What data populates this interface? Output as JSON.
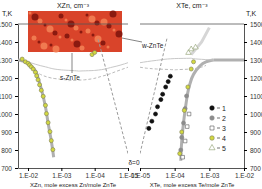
{
  "chart_data": [
    {
      "type": "scatter",
      "title": "XZn, cm⁻³",
      "x_label": "XZn, mole excess Zn/mole ZnTe",
      "y_label": "T,K",
      "log": "x",
      "xlim": [
        0.02,
        1e-05
      ],
      "ylim": [
        700,
        1500
      ],
      "xticks": [
        {
          "value": 0.01,
          "label": "1.E-02"
        },
        {
          "value": 0.001,
          "label": "1.E-03"
        },
        {
          "value": 0.0001,
          "label": "1.E-04"
        },
        {
          "value": 1e-05,
          "label": "1.E-05"
        }
      ],
      "yticks": [
        700,
        800,
        900,
        1000,
        1100,
        1200,
        1300,
        1400,
        1500
      ],
      "annotations": [
        "s-ZnTe"
      ],
      "series": [
        {
          "type": "line",
          "line_style": "thick",
          "color": "#b0b0b0",
          "x": [
            0.02,
            0.012,
            0.008,
            0.006,
            0.005,
            0.004,
            0.003,
            0.0025,
            0.002,
            0.0017
          ],
          "values": [
            1300,
            1290,
            1265,
            1240,
            1200,
            1140,
            1040,
            950,
            850,
            760
          ]
        },
        {
          "type": "line",
          "line_style": "solid",
          "color": "#c8c8c8",
          "x": [
            0.01,
            0.003,
            0.001,
            0.0003,
            0.0001,
            3e-05,
            1e-05
          ],
          "values": [
            1290,
            1262,
            1245,
            1238,
            1242,
            1260,
            1285
          ]
        },
        {
          "type": "line",
          "line_style": "dashed",
          "color": "#bbbbbb",
          "x": [
            0.006,
            0.002,
            0.0006,
            0.0002,
            6e-05,
            2e-05,
            1e-05
          ],
          "values": [
            1240,
            1200,
            1185,
            1190,
            1210,
            1240,
            1260
          ]
        },
        {
          "type": "line",
          "line_style": "dashed",
          "color": "#9a9a9a",
          "x": [
            1e-05,
            8e-05
          ],
          "values": [
            780,
            1420
          ]
        },
        {
          "type": "scatter",
          "marker": "circle",
          "color": "#d2d840",
          "x": [
            0.015,
            0.012,
            0.01,
            0.009,
            0.008,
            0.007,
            0.006,
            0.0055,
            0.005,
            0.0045,
            0.004,
            0.0035,
            0.003,
            0.0028,
            0.0025,
            0.0022,
            0.002,
            0.0018,
            0.00012,
            0.0001
          ],
          "values": [
            1305,
            1290,
            1282,
            1272,
            1262,
            1250,
            1232,
            1212,
            1190,
            1162,
            1132,
            1098,
            1048,
            1002,
            952,
            902,
            852,
            802,
            1330,
            1342
          ]
        }
      ]
    },
    {
      "type": "scatter",
      "title": "XTe, cm⁻³",
      "x_label": "XTe, mole excess Te/mole ZnTe",
      "y_label": "T,K",
      "log": "x",
      "legend": "right",
      "xlim": [
        1e-05,
        0.01
      ],
      "ylim": [
        700,
        1500
      ],
      "xticks": [
        {
          "value": 1e-05,
          "label": "1.E-05"
        },
        {
          "value": 0.0001,
          "label": "1.E-04"
        },
        {
          "value": 0.001,
          "label": "1.E-03"
        },
        {
          "value": 0.01,
          "label": "1.E-02"
        }
      ],
      "yticks": [
        700,
        800,
        900,
        1000,
        1100,
        1200,
        1300,
        1400,
        1500
      ],
      "annotations": [
        "w-ZnTe",
        "δ=0"
      ],
      "series": [
        {
          "type": "line",
          "line_style": "thick",
          "color": "#b0b0b0",
          "x": [
            0.00015,
            0.00016,
            0.00018,
            0.00021,
            0.00026,
            0.00035,
            0.0005,
            0.0008,
            0.0013
          ],
          "values": [
            740,
            850,
            950,
            1050,
            1150,
            1220,
            1260,
            1290,
            1300
          ]
        },
        {
          "type": "line",
          "line_style": "thick",
          "color": "#b0b0b0",
          "x": [
            0.0013,
            0.01
          ],
          "values": [
            1300,
            1300
          ]
        },
        {
          "type": "line",
          "line_style": "solid",
          "color": "#c8c8c8",
          "x": [
            1e-05,
            3e-05,
            0.0001,
            0.0003,
            0.0013
          ],
          "values": [
            1285,
            1298,
            1308,
            1310,
            1300
          ]
        },
        {
          "type": "line",
          "line_style": "dashed",
          "color": "#bbbbbb",
          "x": [
            1e-05,
            3e-05,
            0.0001,
            0.0003,
            0.0008
          ],
          "values": [
            1260,
            1250,
            1245,
            1250,
            1270
          ]
        },
        {
          "type": "line",
          "line_style": "dashed",
          "color": "#9a9a9a",
          "x": [
            1e-05,
            6e-05
          ],
          "values": [
            780,
            1420
          ]
        },
        {
          "type": "line",
          "line_style": "thick",
          "color": "#d6d6d6",
          "x": [
            0.0003,
            0.0006,
            0.001
          ],
          "values": [
            1330,
            1400,
            1480
          ]
        },
        {
          "name": "1",
          "type": "scatter",
          "marker": "circle",
          "color": "#111111",
          "x": [
            1.8e-05,
            2.2e-05,
            2.8e-05,
            3.2e-05,
            4e-05,
            4.5e-05,
            5.5e-05,
            6.5e-05,
            7.5e-05
          ],
          "values": [
            920,
            960,
            1000,
            1040,
            1080,
            1110,
            1150,
            1180,
            1210
          ]
        },
        {
          "name": "2",
          "type": "scatter",
          "marker": "circle",
          "color": "#8c8c8c",
          "x": [
            0.00015,
            0.00016,
            0.00018,
            0.0002,
            0.00022
          ],
          "values": [
            800,
            870,
            950,
            1030,
            1100
          ]
        },
        {
          "name": "3",
          "type": "scatter",
          "marker": "square-open",
          "color": "#555555",
          "x": [
            0.00017,
            0.0002,
            0.00023,
            0.00026
          ],
          "values": [
            760,
            850,
            930,
            1000
          ]
        },
        {
          "name": "4",
          "type": "scatter",
          "marker": "circle",
          "color": "#d2d840",
          "x": [
            0.00014,
            0.00016,
            0.00019,
            0.00024,
            0.0003,
            0.00035
          ],
          "values": [
            780,
            900,
            1020,
            1150,
            1250,
            1290
          ]
        },
        {
          "name": "5",
          "type": "scatter",
          "marker": "triangle-open",
          "color": "#8a9a6a",
          "x": [
            0.00025,
            0.0003,
            0.0004
          ],
          "values": [
            1340,
            1360,
            1370
          ]
        }
      ]
    }
  ]
}
